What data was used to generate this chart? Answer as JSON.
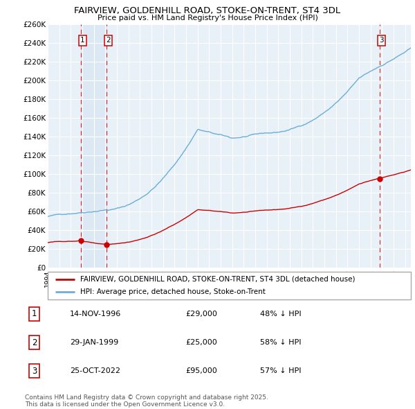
{
  "title_line1": "FAIRVIEW, GOLDENHILL ROAD, STOKE-ON-TRENT, ST4 3DL",
  "title_line2": "Price paid vs. HM Land Registry's House Price Index (HPI)",
  "ylim": [
    0,
    260000
  ],
  "yticks": [
    0,
    20000,
    40000,
    60000,
    80000,
    100000,
    120000,
    140000,
    160000,
    180000,
    200000,
    220000,
    240000,
    260000
  ],
  "ytick_labels": [
    "£0",
    "£20K",
    "£40K",
    "£60K",
    "£80K",
    "£100K",
    "£120K",
    "£140K",
    "£160K",
    "£180K",
    "£200K",
    "£220K",
    "£240K",
    "£260K"
  ],
  "xlim_start": 1994.0,
  "xlim_end": 2025.5,
  "hpi_color": "#6baed6",
  "price_color": "#cc0000",
  "vline_color": "#dd3333",
  "shade_color": "#dce9f5",
  "bg_color": "#e8f0f8",
  "grid_color": "#ffffff",
  "sale1_date": 1996.87,
  "sale1_price": 29000,
  "sale2_date": 1999.08,
  "sale2_price": 25000,
  "sale3_date": 2022.82,
  "sale3_price": 95000,
  "legend_label_red": "FAIRVIEW, GOLDENHILL ROAD, STOKE-ON-TRENT, ST4 3DL (detached house)",
  "legend_label_blue": "HPI: Average price, detached house, Stoke-on-Trent",
  "table_rows": [
    {
      "num": "1",
      "date": "14-NOV-1996",
      "price": "£29,000",
      "hpi": "48% ↓ HPI"
    },
    {
      "num": "2",
      "date": "29-JAN-1999",
      "price": "£25,000",
      "hpi": "58% ↓ HPI"
    },
    {
      "num": "3",
      "date": "25-OCT-2022",
      "price": "£95,000",
      "hpi": "57% ↓ HPI"
    }
  ],
  "footnote": "Contains HM Land Registry data © Crown copyright and database right 2025.\nThis data is licensed under the Open Government Licence v3.0."
}
